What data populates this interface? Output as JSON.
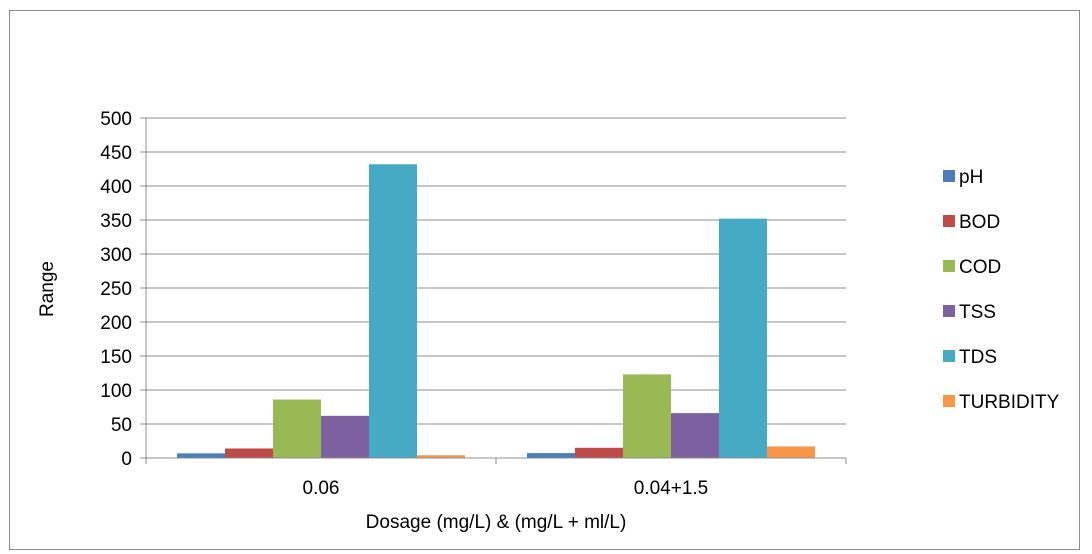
{
  "chart_data": {
    "type": "bar",
    "title": "",
    "xlabel": "Dosage (mg/L) & (mg/L + ml/L)",
    "ylabel": "Range",
    "categories": [
      "0.06",
      "0.04+1.5"
    ],
    "ylim": [
      0,
      500
    ],
    "yticks": [
      0,
      50,
      100,
      150,
      200,
      250,
      300,
      350,
      400,
      450,
      500
    ],
    "grid": true,
    "legend_position": "right",
    "series": [
      {
        "name": "pH",
        "color": "#4a7ebb",
        "values": [
          6.8,
          7.2
        ]
      },
      {
        "name": "BOD",
        "color": "#be4b48",
        "values": [
          14,
          15
        ]
      },
      {
        "name": "COD",
        "color": "#98b954",
        "values": [
          86,
          123
        ]
      },
      {
        "name": "TSS",
        "color": "#7d60a0",
        "values": [
          62,
          66
        ]
      },
      {
        "name": "TDS",
        "color": "#46aac5",
        "values": [
          432,
          352
        ]
      },
      {
        "name": "TURBIDITY",
        "color": "#f79646",
        "values": [
          4,
          17
        ]
      }
    ]
  }
}
